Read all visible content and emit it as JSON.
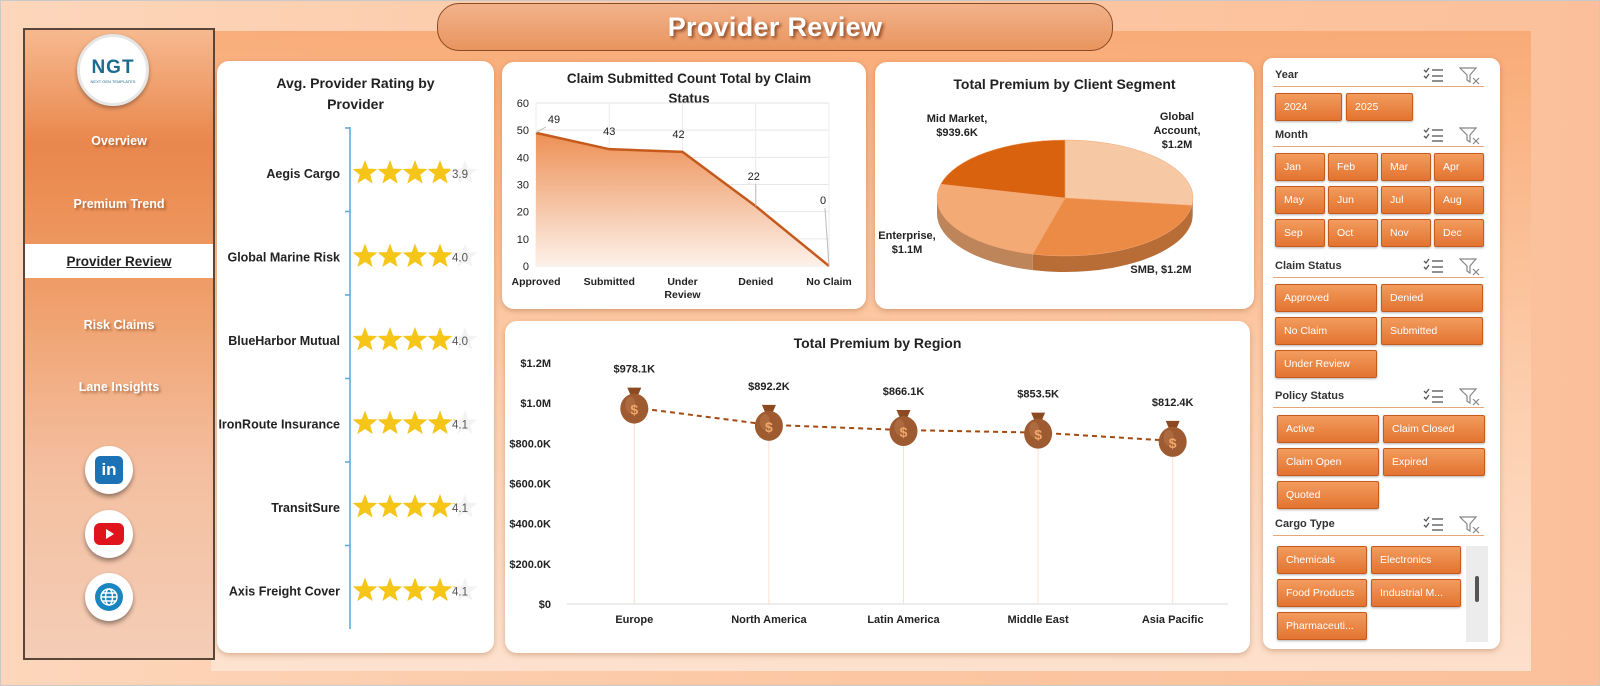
{
  "title": "Provider Review",
  "logo": {
    "text": "NGT",
    "subtext": "NEXT GEN TEMPLATES"
  },
  "nav": [
    {
      "label": "Overview"
    },
    {
      "label": "Premium Trend"
    },
    {
      "label": "Provider Review",
      "active": true
    },
    {
      "label": "Risk Claims"
    },
    {
      "label": "Lane Insights"
    }
  ],
  "social": [
    {
      "icon": "linkedin-icon",
      "text": "in"
    },
    {
      "icon": "youtube-icon"
    },
    {
      "icon": "globe-icon"
    }
  ],
  "colors": {
    "accent": "#e37330",
    "star": "#f5c518",
    "line": "#c55a1c"
  },
  "rating_card": {
    "title": "Avg. Provider Rating by Provider",
    "max_stars": 5,
    "providers": [
      {
        "name": "Aegis Cargo",
        "rating": 3.9,
        "label": "3.9"
      },
      {
        "name": "Global Marine Risk",
        "rating": 4.0,
        "label": "4.0"
      },
      {
        "name": "BlueHarbor Mutual",
        "rating": 4.0,
        "label": "4.0"
      },
      {
        "name": "IronRoute Insurance",
        "rating": 4.1,
        "label": "4.1"
      },
      {
        "name": "TransitSure",
        "rating": 4.1,
        "label": "4.1"
      },
      {
        "name": "Axis Freight Cover",
        "rating": 4.1,
        "label": "4.1"
      }
    ]
  },
  "claim_card": {
    "title": "Claim Submitted Count Total by Claim Status"
  },
  "segment_card": {
    "title": "Total Premium by Client Segment"
  },
  "region_card": {
    "title": "Total Premium by Region"
  },
  "chart_data": [
    {
      "type": "area",
      "title": "Claim Submitted Count Total by Claim Status",
      "categories": [
        "Approved",
        "Submitted",
        "Under Review",
        "Denied",
        "No Claim"
      ],
      "values": [
        49,
        43,
        42,
        22,
        0
      ],
      "data_labels": [
        "49",
        "43",
        "42",
        "22",
        "0"
      ],
      "ylim": [
        0,
        60
      ],
      "yticks": [
        "0",
        "10",
        "20",
        "30",
        "40",
        "50",
        "60"
      ],
      "grid": true
    },
    {
      "type": "pie",
      "title": "Total Premium by Client Segment",
      "slices": [
        {
          "name": "Global Account",
          "value": 1.2,
          "label": "Global Account, $1.2M",
          "color": "#f6c8a4"
        },
        {
          "name": "SMB",
          "value": 1.2,
          "label": "SMB, $1.2M",
          "color": "#ec8b45"
        },
        {
          "name": "Enterprise",
          "value": 1.1,
          "label": "Enterprise, $1.1M",
          "color": "#f4aa74"
        },
        {
          "name": "Mid Market",
          "value": 0.9396,
          "label": "Mid Market, $939.6K",
          "color": "#d9620f"
        }
      ]
    },
    {
      "type": "line",
      "title": "Total Premium by Region",
      "categories": [
        "Europe",
        "North America",
        "Latin America",
        "Middle East",
        "Asia Pacific"
      ],
      "values": [
        978.1,
        892.2,
        866.1,
        853.5,
        812.4
      ],
      "unit": "K",
      "data_labels": [
        "$978.1K",
        "$892.2K",
        "$866.1K",
        "$853.5K",
        "$812.4K"
      ],
      "ylim": [
        0,
        1200
      ],
      "yticks": [
        "$0",
        "$200.0K",
        "$400.0K",
        "$600.0K",
        "$800.0K",
        "$1.0M",
        "$1.2M"
      ],
      "marker": "money-bag-icon",
      "line_style": "dashed"
    }
  ],
  "slicers": {
    "year": {
      "title": "Year",
      "options": [
        "2024",
        "2025"
      ]
    },
    "month": {
      "title": "Month",
      "options": [
        "Jan",
        "Feb",
        "Mar",
        "Apr",
        "May",
        "Jun",
        "Jul",
        "Aug",
        "Sep",
        "Oct",
        "Nov",
        "Dec"
      ]
    },
    "claim_status": {
      "title": "Claim Status",
      "options": [
        "Approved",
        "Denied",
        "No Claim",
        "Submitted",
        "Under Review"
      ]
    },
    "policy_status": {
      "title": "Policy Status",
      "options": [
        "Active",
        "Claim Closed",
        "Claim Open",
        "Expired",
        "Quoted"
      ]
    },
    "cargo_type": {
      "title": "Cargo Type",
      "options": [
        "Chemicals",
        "Electronics",
        "Food Products",
        "Industrial M...",
        "Pharmaceuti..."
      ]
    }
  }
}
